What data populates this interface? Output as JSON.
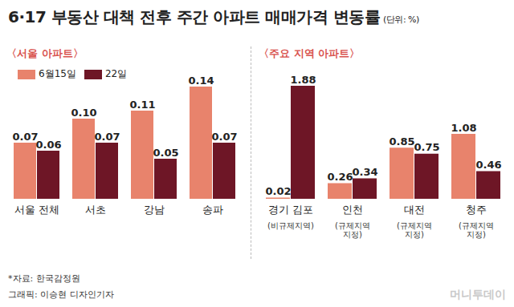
{
  "title": "6·17 부동산 대책 전후 주간 아파트 매매가격 변동률",
  "subtitle": "(단위: %)",
  "source": "*자료: 한국감정원",
  "credit": "그래픽: 이승현 디자인기자",
  "watermark": "머니투데이",
  "chart_data": [
    {
      "type": "bar",
      "title": "〈서울 아파트〉",
      "categories": [
        "서울 전체",
        "서초",
        "강남",
        "송파"
      ],
      "series": [
        {
          "name": "6월15일",
          "color": "#e8836c",
          "values": [
            0.07,
            0.1,
            0.11,
            0.14
          ],
          "value_labels": [
            "0.07",
            "0.10",
            "0.11",
            "0.14"
          ]
        },
        {
          "name": "22일",
          "color": "#6e1626",
          "values": [
            0.06,
            0.07,
            0.05,
            0.07
          ],
          "value_labels": [
            "0.06",
            "0.07",
            "0.05",
            "0.07"
          ]
        }
      ],
      "ylim": [
        0,
        0.15
      ],
      "tick_labels": false,
      "data_labels": true,
      "legend": "top-left"
    },
    {
      "type": "bar",
      "title": "〈주요 지역 아파트〉",
      "categories": [
        "경기 김포",
        "인천",
        "대전",
        "청주"
      ],
      "category_notes": [
        "(비규제지역)",
        "(규제지역 지정)",
        "(규제지역 지정)",
        "(규제지역 지정)"
      ],
      "series": [
        {
          "name": "6월15일",
          "color": "#e8836c",
          "values": [
            0.02,
            0.26,
            0.85,
            1.08
          ]
        },
        {
          "name": "22일",
          "color": "#6e1626",
          "values": [
            1.88,
            0.34,
            0.75,
            0.46
          ]
        }
      ],
      "ylim": [
        0,
        2
      ],
      "tick_labels": false,
      "data_labels": true
    }
  ]
}
